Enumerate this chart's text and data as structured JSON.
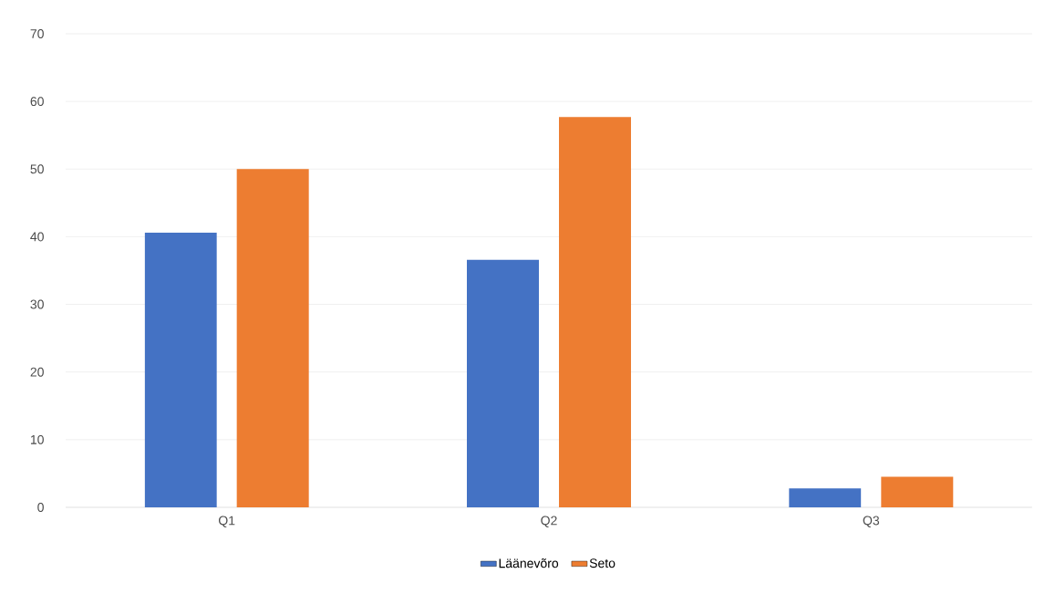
{
  "chart_data": {
    "type": "bar",
    "categories": [
      "Q1",
      "Q2",
      "Q3"
    ],
    "series": [
      {
        "name": "Läänevõro",
        "color": "#4472c4",
        "values": [
          40.6,
          36.6,
          2.8
        ]
      },
      {
        "name": "Seto",
        "color": "#ed7d31",
        "values": [
          50,
          57.7,
          4.5
        ]
      }
    ],
    "ylim": [
      0,
      70
    ],
    "yticks": [
      0,
      10,
      20,
      30,
      40,
      50,
      60,
      70
    ],
    "grid": "y",
    "legend": "bottom"
  }
}
